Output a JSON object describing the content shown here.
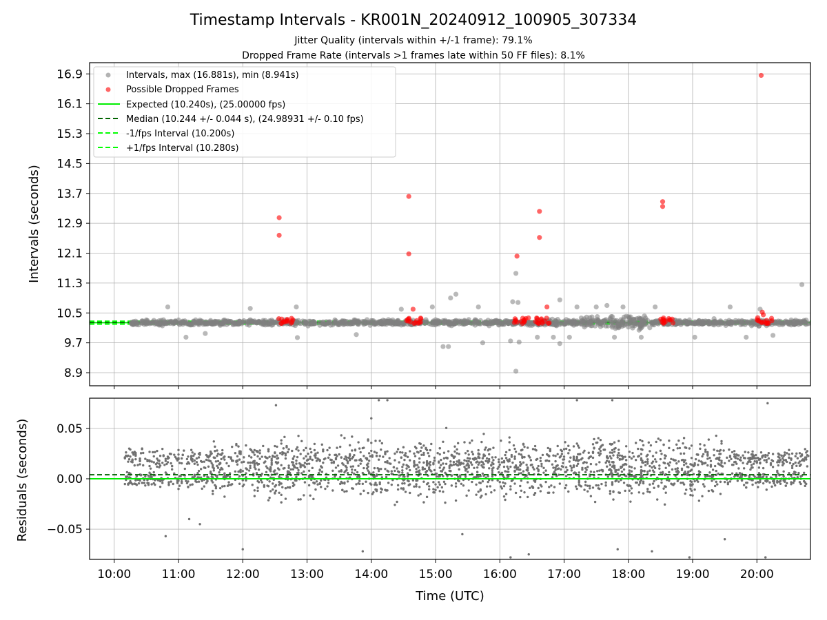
{
  "chart_data": [
    {
      "panel": "intervals",
      "type": "scatter",
      "title": "Timestamp Intervals - KR001N_20240912_100905_307334",
      "subtitle_1": "Jitter Quality (intervals within +/-1 frame): 79.1%",
      "subtitle_2": "Dropped Frame Rate (intervals >1 frames late within 50 FF files): 8.1%",
      "ylabel": "Intervals (seconds)",
      "xlabel": "",
      "xlim": [
        "09:37",
        "20:50"
      ],
      "ylim": [
        8.55,
        17.2
      ],
      "x_tick_labels": [
        "10:00",
        "11:00",
        "12:00",
        "13:00",
        "14:00",
        "15:00",
        "16:00",
        "17:00",
        "18:00",
        "19:00",
        "20:00"
      ],
      "y_tick_labels": [
        "8.9",
        "9.7",
        "10.5",
        "11.3",
        "12.1",
        "12.9",
        "13.7",
        "14.5",
        "15.3",
        "16.1",
        "16.9"
      ],
      "grid": true,
      "legend_position": "top-left",
      "legend": [
        {
          "label": "Intervals, max (16.881s), min (8.941s)",
          "color": "#808080",
          "style": "marker"
        },
        {
          "label": "Possible Dropped Frames",
          "color": "#ff0000",
          "style": "marker"
        },
        {
          "label": "Expected (10.240s), (25.00000 fps)",
          "color": "#00ee00",
          "style": "solid"
        },
        {
          "label": "Median (10.244 +/- 0.044 s), (24.98931 +/- 0.10 fps)",
          "color": "#006400",
          "style": "dashed"
        },
        {
          "label": "-1/fps Interval (10.200s)",
          "color": "#00ff00",
          "style": "dashed"
        },
        {
          "label": "+1/fps Interval (10.280s)",
          "color": "#00ff00",
          "style": "dashed"
        }
      ],
      "reference_lines": [
        {
          "name": "Expected",
          "y": 10.24,
          "color": "#00ee00",
          "style": "solid"
        },
        {
          "name": "Median",
          "y": 10.244,
          "color": "#006400",
          "style": "dashed"
        },
        {
          "name": "-1/fps",
          "y": 10.2,
          "color": "#00ff00",
          "style": "dashed"
        },
        {
          "name": "+1/fps",
          "y": 10.28,
          "color": "#00ff00",
          "style": "dashed"
        }
      ],
      "series": [
        {
          "name": "Intervals",
          "color": "#808080",
          "points": [
            [
              "10:50",
              10.66
            ],
            [
              "11:07",
              9.85
            ],
            [
              "12:07",
              10.62
            ],
            [
              "12:50",
              10.66
            ],
            [
              "12:51",
              9.84
            ],
            [
              "14:28",
              10.6
            ],
            [
              "14:57",
              10.66
            ],
            [
              "15:07",
              9.6
            ],
            [
              "15:12",
              9.6
            ],
            [
              "15:14",
              10.9
            ],
            [
              "15:19",
              11.0
            ],
            [
              "15:40",
              10.66
            ],
            [
              "15:44",
              9.7
            ],
            [
              "16:12",
              10.8
            ],
            [
              "16:15",
              11.56
            ],
            [
              "16:17",
              10.78
            ],
            [
              "16:10",
              9.75
            ],
            [
              "16:18",
              9.72
            ],
            [
              "16:15",
              8.94
            ],
            [
              "16:35",
              9.85
            ],
            [
              "16:50",
              9.85
            ],
            [
              "16:56",
              10.85
            ],
            [
              "17:05",
              9.85
            ],
            [
              "16:56",
              9.68
            ],
            [
              "17:12",
              10.66
            ],
            [
              "17:30",
              10.66
            ],
            [
              "17:47",
              9.85
            ],
            [
              "17:55",
              10.66
            ],
            [
              "18:12",
              9.85
            ],
            [
              "18:25",
              10.66
            ],
            [
              "19:02",
              9.85
            ],
            [
              "19:35",
              10.66
            ],
            [
              "19:50",
              9.85
            ],
            [
              "20:03",
              10.6
            ],
            [
              "20:42",
              11.26
            ],
            [
              "20:15",
              9.9
            ],
            [
              "13:46",
              9.92
            ],
            [
              "11:25",
              9.95
            ],
            [
              "17:40",
              10.7
            ]
          ]
        },
        {
          "name": "Possible Dropped Frames",
          "color": "#ff0000",
          "points": [
            [
              "12:34",
              13.05
            ],
            [
              "12:34",
              12.58
            ],
            [
              "14:35",
              13.62
            ],
            [
              "14:35",
              12.08
            ],
            [
              "14:39",
              10.6
            ],
            [
              "16:16",
              12.02
            ],
            [
              "16:37",
              13.22
            ],
            [
              "16:37",
              12.52
            ],
            [
              "16:44",
              10.66
            ],
            [
              "18:32",
              13.48
            ],
            [
              "18:32",
              13.35
            ],
            [
              "20:04",
              16.86
            ],
            [
              "20:05",
              10.52
            ],
            [
              "20:06",
              10.45
            ]
          ],
          "clusters_near_10_25": [
            "12:40",
            "14:40",
            "16:20",
            "16:40",
            "18:37",
            "20:07"
          ]
        }
      ]
    },
    {
      "panel": "residuals",
      "type": "scatter",
      "ylabel": "Residuals (seconds)",
      "xlabel": "Time (UTC)",
      "xlim": [
        "09:37",
        "20:50"
      ],
      "ylim": [
        -0.08,
        0.08
      ],
      "x_tick_labels": [
        "10:00",
        "11:00",
        "12:00",
        "13:00",
        "14:00",
        "15:00",
        "16:00",
        "17:00",
        "18:00",
        "19:00",
        "20:00"
      ],
      "y_tick_labels": [
        "0.05",
        "0.00",
        "−0.05"
      ],
      "grid": true,
      "reference_lines": [
        {
          "name": "Zero",
          "y": 0.0,
          "color": "#00ee00",
          "style": "solid"
        },
        {
          "name": "Median offset",
          "y": 0.004,
          "color": "#006400",
          "style": "dashed"
        }
      ],
      "series": [
        {
          "name": "Residuals",
          "color": "#707070",
          "points": [
            [
              "12:31",
              0.073
            ],
            [
              "13:52",
              -0.072
            ],
            [
              "14:07",
              0.078
            ],
            [
              "14:15",
              0.078
            ],
            [
              "14:00",
              0.06
            ],
            [
              "16:27",
              -0.075
            ],
            [
              "16:10",
              -0.078
            ],
            [
              "17:12",
              0.078
            ],
            [
              "17:45",
              0.078
            ],
            [
              "17:50",
              -0.07
            ],
            [
              "18:22",
              -0.072
            ],
            [
              "18:57",
              -0.078
            ],
            [
              "20:10",
              0.075
            ],
            [
              "20:08",
              -0.078
            ],
            [
              "11:20",
              -0.045
            ],
            [
              "10:48",
              -0.057
            ],
            [
              "11:10",
              -0.04
            ],
            [
              "12:00",
              -0.07
            ],
            [
              "15:25",
              -0.055
            ],
            [
              "19:30",
              -0.06
            ]
          ]
        }
      ]
    }
  ]
}
